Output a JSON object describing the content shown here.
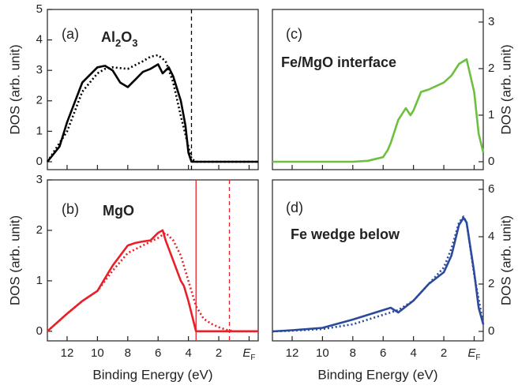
{
  "chart_data": [
    {
      "type": "line",
      "label": "(a)",
      "title": "Al2O3",
      "y_label": "DOS (arb. unit)",
      "y_side": "left",
      "xlim": [
        13.3,
        -0.6
      ],
      "xticks": [
        12,
        10,
        8,
        6,
        4,
        2,
        0
      ],
      "show_xtick_labels": false,
      "ylim": [
        -0.26,
        5
      ],
      "yticks": [
        0,
        1,
        2,
        3,
        4,
        5
      ],
      "vlines": [
        {
          "x": 3.8,
          "color": "#000000",
          "style": "dashed"
        }
      ],
      "series": [
        {
          "color": "#000000",
          "style": "solid",
          "x": [
            13.3,
            12.5,
            12,
            11,
            10,
            9.5,
            9,
            8.5,
            8,
            7.5,
            7,
            6.5,
            6,
            5.7,
            5.5,
            5.3,
            5,
            4.5,
            4.2,
            4,
            3.8,
            3,
            0,
            -0.6
          ],
          "values": [
            0,
            0.5,
            1.3,
            2.6,
            3.1,
            3.15,
            3.0,
            2.6,
            2.45,
            2.7,
            2.95,
            3.05,
            3.2,
            2.9,
            3.0,
            3.1,
            2.8,
            2.0,
            1.2,
            0.3,
            0,
            0,
            0,
            0
          ]
        },
        {
          "color": "#000000",
          "style": "dotted",
          "x": [
            13.3,
            12,
            11,
            10,
            9.5,
            9,
            8,
            7,
            6.5,
            6,
            5.5,
            5,
            4.5,
            4,
            3.8,
            3.5,
            0,
            -0.6
          ],
          "values": [
            0,
            1.0,
            2.3,
            2.9,
            3.05,
            3.1,
            3.05,
            3.3,
            3.45,
            3.5,
            3.3,
            2.6,
            1.5,
            0.5,
            0.1,
            0,
            0,
            0
          ]
        }
      ]
    },
    {
      "type": "line",
      "label": "(b)",
      "title": "MgO",
      "y_label": "DOS (arb. unit)",
      "x_label": "Binding Energy (eV)",
      "y_side": "left",
      "xlim": [
        13.3,
        -0.6
      ],
      "xticks": [
        12,
        10,
        8,
        6,
        4,
        2,
        {
          "value": 0,
          "label": "EF"
        }
      ],
      "show_xtick_labels": true,
      "ylim": [
        -0.19,
        3
      ],
      "yticks": [
        0,
        1,
        2,
        3
      ],
      "vlines": [
        {
          "x": 3.5,
          "color": "#e8202a",
          "style": "solid"
        },
        {
          "x": 1.3,
          "color": "#e8202a",
          "style": "dashed"
        }
      ],
      "series": [
        {
          "color": "#e8202a",
          "style": "solid",
          "x": [
            13.3,
            12,
            11,
            10,
            9,
            8,
            7.5,
            7,
            6.5,
            6,
            5.7,
            5.5,
            5,
            4.5,
            4.3,
            4.2,
            4,
            3.5,
            0,
            -0.6
          ],
          "values": [
            0,
            0.35,
            0.6,
            0.8,
            1.3,
            1.7,
            1.75,
            1.78,
            1.8,
            1.95,
            2.0,
            1.8,
            1.4,
            1.0,
            0.9,
            0.8,
            0.6,
            0,
            0,
            0
          ]
        },
        {
          "color": "#e8202a",
          "style": "dotted",
          "x": [
            13.3,
            12,
            11,
            10,
            9,
            8,
            7,
            6,
            5.5,
            5,
            4.5,
            4,
            3.5,
            3,
            2.5,
            2,
            1.5,
            1,
            0,
            -0.6
          ],
          "values": [
            0,
            0.35,
            0.6,
            0.8,
            1.2,
            1.55,
            1.7,
            1.85,
            1.95,
            1.8,
            1.5,
            1.0,
            0.5,
            0.25,
            0.15,
            0.08,
            0.03,
            0,
            0,
            0
          ]
        }
      ]
    },
    {
      "type": "line",
      "label": "(c)",
      "title": "Fe/MgO interface",
      "y_label": "DOS (arb. unit)",
      "y_side": "right",
      "xlim": [
        13.3,
        -0.6
      ],
      "xticks": [
        12,
        10,
        8,
        6,
        4,
        2,
        0
      ],
      "show_xtick_labels": false,
      "ylim": [
        -0.17,
        3.27
      ],
      "yticks": [
        0,
        1,
        2,
        3
      ],
      "series": [
        {
          "color": "#6cbf3f",
          "style": "solid",
          "x": [
            13.3,
            8,
            7,
            6,
            5.7,
            5.5,
            5,
            4.5,
            4.2,
            4,
            3.5,
            3,
            2,
            1.5,
            1,
            0.5,
            0,
            -0.3,
            -0.6
          ],
          "values": [
            0,
            0,
            0.02,
            0.1,
            0.25,
            0.4,
            0.9,
            1.15,
            1.0,
            1.1,
            1.5,
            1.55,
            1.7,
            1.85,
            2.1,
            2.2,
            1.5,
            0.6,
            0.2
          ]
        }
      ]
    },
    {
      "type": "line",
      "label": "(d)",
      "title": "Fe wedge below",
      "y_label": "DOS (arb. unit)",
      "x_label": "Binding Energy (eV)",
      "y_side": "right",
      "xlim": [
        13.3,
        -0.6
      ],
      "xticks": [
        12,
        10,
        8,
        6,
        4,
        2,
        {
          "value": 0,
          "label": "EF"
        }
      ],
      "show_xtick_labels": true,
      "ylim": [
        -0.4,
        6.4
      ],
      "yticks": [
        0,
        2,
        4,
        6
      ],
      "series": [
        {
          "color": "#2b4a9c",
          "style": "solid",
          "x": [
            13.3,
            12,
            10,
            8,
            7,
            6,
            5.5,
            5,
            4,
            3,
            2,
            1.5,
            1,
            0.7,
            0.5,
            0,
            -0.3,
            -0.6
          ],
          "values": [
            0,
            0.05,
            0.15,
            0.5,
            0.7,
            0.9,
            1.0,
            0.8,
            1.3,
            2.0,
            2.5,
            3.2,
            4.5,
            4.8,
            4.6,
            2.5,
            1.0,
            0.3
          ]
        },
        {
          "color": "#2b4a9c",
          "style": "dotted",
          "x": [
            13.3,
            12,
            10,
            8,
            7,
            6,
            5,
            4,
            3,
            2,
            1.5,
            1,
            0.7,
            0.5,
            0,
            -0.6
          ],
          "values": [
            0,
            0.03,
            0.1,
            0.3,
            0.5,
            0.7,
            0.9,
            1.3,
            2.0,
            2.7,
            3.5,
            4.6,
            4.85,
            4.6,
            2.4,
            0.3
          ]
        }
      ]
    }
  ]
}
